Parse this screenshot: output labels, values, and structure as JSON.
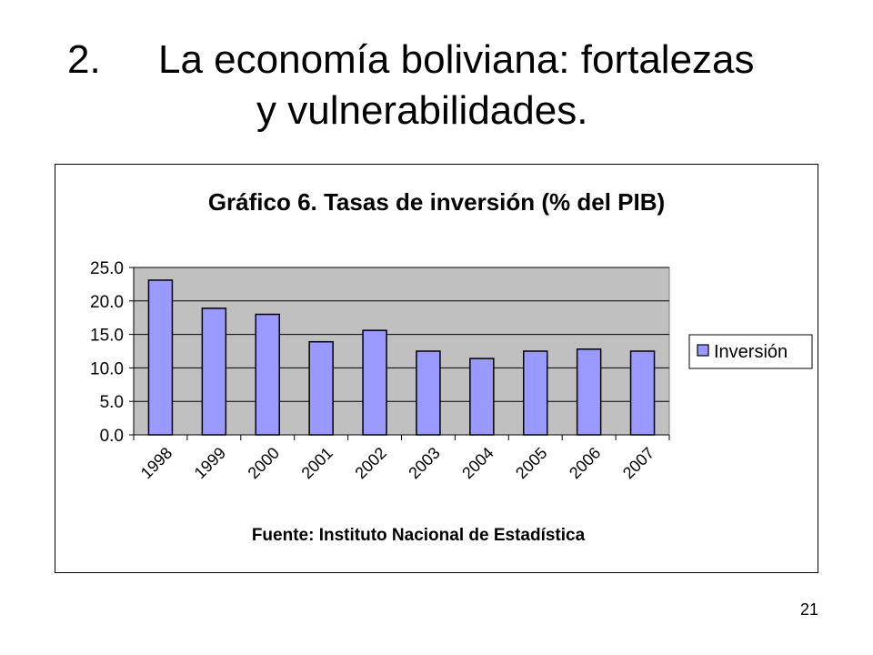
{
  "slide": {
    "title_number": "2.",
    "title_line1": "La economía boliviana: fortalezas",
    "title_line2": "y vulnerabilidades.",
    "page_number": "21"
  },
  "chart_data": {
    "type": "bar",
    "title": "Gráfico 6. Tasas de inversión (% del PIB)",
    "footnote": "Fuente: Instituto Nacional de Estadística",
    "categories": [
      "1998",
      "1999",
      "2000",
      "2001",
      "2002",
      "2003",
      "2004",
      "2005",
      "2006",
      "2007"
    ],
    "series": [
      {
        "name": "Inversión",
        "values": [
          23.1,
          18.9,
          18.0,
          13.9,
          15.6,
          12.5,
          11.4,
          12.5,
          12.8,
          12.5
        ]
      }
    ],
    "yticks": [
      "0.0",
      "5.0",
      "10.0",
      "15.0",
      "20.0",
      "25.0"
    ],
    "ylim": [
      0,
      25
    ],
    "legend_position": "right",
    "grid": true,
    "colors": {
      "bar": "#9999ff",
      "plot_background": "#c0c0c0",
      "border": "#000000"
    }
  }
}
